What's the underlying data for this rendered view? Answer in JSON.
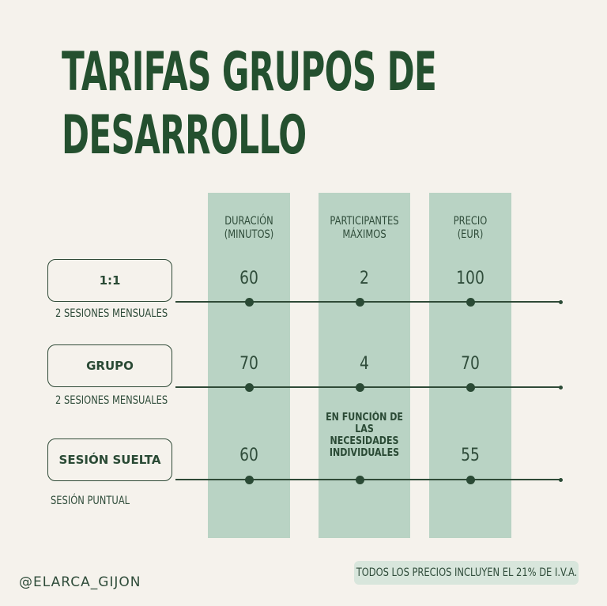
{
  "title": {
    "line1": "TARIFAS GRUPOS DE",
    "line2": "DESARROLLO"
  },
  "columns": [
    {
      "line1": "DURACIÓN",
      "line2": "(MINUTOS)"
    },
    {
      "line1": "PARTICIPANTES",
      "line2": "MÁXIMOS"
    },
    {
      "line1": "PRECIO",
      "line2": "(EUR)"
    }
  ],
  "rows": [
    {
      "label": "1:1",
      "subtitle": "2 SESIONES MENSUALES",
      "duration": "60",
      "participants": "2",
      "price": "100"
    },
    {
      "label": "GRUPO",
      "subtitle": "2 SESIONES MENSUALES",
      "duration": "70",
      "participants": "4",
      "price": "70"
    },
    {
      "label": "SESIÓN SUELTA",
      "subtitle": "SESIÓN PUNTUAL",
      "duration": "60",
      "participants_lines": [
        "EN FUNCIÓN DE",
        "LAS",
        "NECESIDADES",
        "INDIVIDUALES"
      ],
      "price": "55"
    }
  ],
  "footer": {
    "handle": "@ELARCA_GIJON",
    "note": "TODOS LOS PRECIOS INCLUYEN EL 21% DE I.V.A."
  }
}
